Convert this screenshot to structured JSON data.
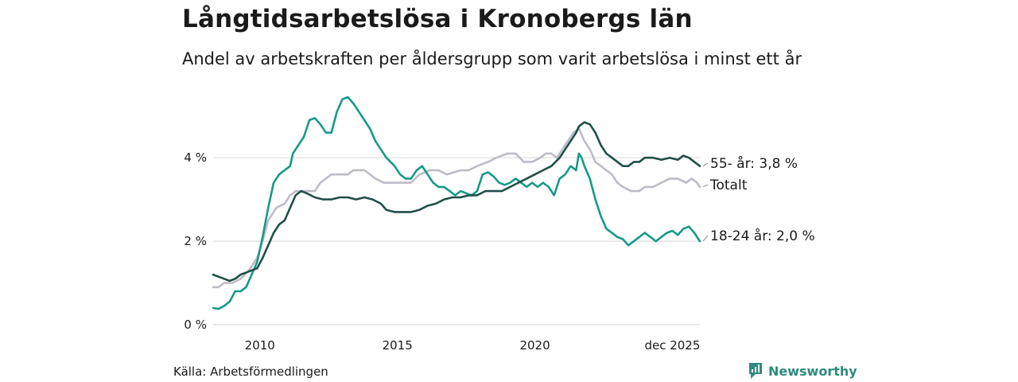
{
  "colors": {
    "youth": "#179a86",
    "older": "#224e48",
    "total": "#bdbcc6",
    "grid": "#dedede",
    "brand": "#2e8b7e"
  },
  "brand": {
    "name": "Newsworthy",
    "icon": "newsworthy-logo-icon"
  },
  "source": "Källa: Arbetsförmedlingen",
  "chart_data": {
    "type": "line",
    "title": "Långtidsarbetslösa i Kronobergs län",
    "subtitle": "Andel av arbetskraften per åldersgrupp som varit arbetslösa i minst ett år",
    "xlabel": "",
    "ylabel": "",
    "xlim": [
      2008.3,
      2026.0
    ],
    "ylim": [
      0,
      5.7
    ],
    "grid": true,
    "y_ticks": [
      0,
      2,
      4
    ],
    "y_tick_labels": [
      "0 %",
      "2 %",
      "4 %"
    ],
    "x_ticks": [
      2010,
      2015,
      2020,
      2025.0
    ],
    "x_tick_labels": [
      "2010",
      "2015",
      "2020",
      "dec 2025"
    ],
    "series": [
      {
        "name": "Totalt",
        "label": "Totalt",
        "points": [
          [
            2008.3,
            0.9
          ],
          [
            2008.5,
            0.9
          ],
          [
            2008.7,
            1.0
          ],
          [
            2009.0,
            1.0
          ],
          [
            2009.3,
            1.1
          ],
          [
            2009.6,
            1.3
          ],
          [
            2009.9,
            1.6
          ],
          [
            2010.1,
            2.0
          ],
          [
            2010.3,
            2.5
          ],
          [
            2010.6,
            2.8
          ],
          [
            2010.9,
            2.9
          ],
          [
            2011.1,
            3.1
          ],
          [
            2011.3,
            3.2
          ],
          [
            2011.6,
            3.2
          ],
          [
            2012.0,
            3.2
          ],
          [
            2012.2,
            3.4
          ],
          [
            2012.6,
            3.6
          ],
          [
            2013.2,
            3.6
          ],
          [
            2013.4,
            3.7
          ],
          [
            2013.8,
            3.7
          ],
          [
            2014.2,
            3.5
          ],
          [
            2014.5,
            3.4
          ],
          [
            2015.0,
            3.4
          ],
          [
            2015.5,
            3.4
          ],
          [
            2015.8,
            3.6
          ],
          [
            2016.2,
            3.7
          ],
          [
            2016.5,
            3.7
          ],
          [
            2016.8,
            3.6
          ],
          [
            2017.3,
            3.7
          ],
          [
            2017.6,
            3.7
          ],
          [
            2017.9,
            3.8
          ],
          [
            2018.3,
            3.9
          ],
          [
            2018.6,
            4.0
          ],
          [
            2019.0,
            4.1
          ],
          [
            2019.3,
            4.1
          ],
          [
            2019.6,
            3.9
          ],
          [
            2019.9,
            3.9
          ],
          [
            2020.2,
            4.0
          ],
          [
            2020.4,
            4.1
          ],
          [
            2020.6,
            4.1
          ],
          [
            2020.8,
            4.0
          ],
          [
            2021.0,
            4.2
          ],
          [
            2021.2,
            4.4
          ],
          [
            2021.4,
            4.6
          ],
          [
            2021.6,
            4.7
          ],
          [
            2021.8,
            4.4
          ],
          [
            2022.0,
            4.2
          ],
          [
            2022.2,
            3.9
          ],
          [
            2022.4,
            3.8
          ],
          [
            2022.6,
            3.7
          ],
          [
            2022.8,
            3.6
          ],
          [
            2023.0,
            3.4
          ],
          [
            2023.2,
            3.3
          ],
          [
            2023.5,
            3.2
          ],
          [
            2023.8,
            3.2
          ],
          [
            2024.0,
            3.3
          ],
          [
            2024.3,
            3.3
          ],
          [
            2024.6,
            3.4
          ],
          [
            2024.9,
            3.5
          ],
          [
            2025.2,
            3.5
          ],
          [
            2025.5,
            3.4
          ],
          [
            2025.7,
            3.5
          ],
          [
            2025.9,
            3.4
          ],
          [
            2026.0,
            3.3
          ]
        ]
      },
      {
        "name": "18-24 år",
        "label": "18-24 år: 2,0 %",
        "points": [
          [
            2008.3,
            0.4
          ],
          [
            2008.5,
            0.38
          ],
          [
            2008.7,
            0.45
          ],
          [
            2008.9,
            0.55
          ],
          [
            2009.1,
            0.8
          ],
          [
            2009.3,
            0.8
          ],
          [
            2009.5,
            0.9
          ],
          [
            2009.7,
            1.2
          ],
          [
            2009.9,
            1.5
          ],
          [
            2010.1,
            2.1
          ],
          [
            2010.3,
            2.8
          ],
          [
            2010.5,
            3.4
          ],
          [
            2010.7,
            3.6
          ],
          [
            2010.9,
            3.7
          ],
          [
            2011.1,
            3.8
          ],
          [
            2011.2,
            4.1
          ],
          [
            2011.4,
            4.3
          ],
          [
            2011.6,
            4.5
          ],
          [
            2011.8,
            4.9
          ],
          [
            2012.0,
            4.95
          ],
          [
            2012.2,
            4.8
          ],
          [
            2012.4,
            4.6
          ],
          [
            2012.6,
            4.6
          ],
          [
            2012.8,
            5.1
          ],
          [
            2013.0,
            5.4
          ],
          [
            2013.2,
            5.45
          ],
          [
            2013.4,
            5.3
          ],
          [
            2013.6,
            5.1
          ],
          [
            2013.8,
            4.9
          ],
          [
            2014.0,
            4.7
          ],
          [
            2014.2,
            4.4
          ],
          [
            2014.4,
            4.2
          ],
          [
            2014.6,
            4.0
          ],
          [
            2014.9,
            3.8
          ],
          [
            2015.1,
            3.6
          ],
          [
            2015.3,
            3.5
          ],
          [
            2015.5,
            3.5
          ],
          [
            2015.7,
            3.7
          ],
          [
            2015.9,
            3.8
          ],
          [
            2016.1,
            3.6
          ],
          [
            2016.3,
            3.4
          ],
          [
            2016.5,
            3.3
          ],
          [
            2016.7,
            3.3
          ],
          [
            2016.9,
            3.2
          ],
          [
            2017.1,
            3.1
          ],
          [
            2017.3,
            3.2
          ],
          [
            2017.5,
            3.15
          ],
          [
            2017.7,
            3.1
          ],
          [
            2017.9,
            3.2
          ],
          [
            2018.1,
            3.6
          ],
          [
            2018.3,
            3.65
          ],
          [
            2018.5,
            3.55
          ],
          [
            2018.7,
            3.4
          ],
          [
            2018.9,
            3.35
          ],
          [
            2019.1,
            3.4
          ],
          [
            2019.3,
            3.5
          ],
          [
            2019.5,
            3.4
          ],
          [
            2019.7,
            3.3
          ],
          [
            2019.9,
            3.4
          ],
          [
            2020.1,
            3.3
          ],
          [
            2020.3,
            3.4
          ],
          [
            2020.5,
            3.3
          ],
          [
            2020.7,
            3.1
          ],
          [
            2020.9,
            3.5
          ],
          [
            2021.1,
            3.6
          ],
          [
            2021.3,
            3.8
          ],
          [
            2021.5,
            3.7
          ],
          [
            2021.6,
            4.1
          ],
          [
            2021.7,
            4.0
          ],
          [
            2021.8,
            3.8
          ],
          [
            2022.0,
            3.5
          ],
          [
            2022.2,
            3.0
          ],
          [
            2022.4,
            2.6
          ],
          [
            2022.6,
            2.3
          ],
          [
            2022.8,
            2.2
          ],
          [
            2023.0,
            2.1
          ],
          [
            2023.2,
            2.05
          ],
          [
            2023.4,
            1.9
          ],
          [
            2023.6,
            2.0
          ],
          [
            2023.8,
            2.1
          ],
          [
            2024.0,
            2.2
          ],
          [
            2024.2,
            2.1
          ],
          [
            2024.4,
            2.0
          ],
          [
            2024.6,
            2.1
          ],
          [
            2024.8,
            2.2
          ],
          [
            2025.0,
            2.25
          ],
          [
            2025.2,
            2.15
          ],
          [
            2025.4,
            2.3
          ],
          [
            2025.6,
            2.35
          ],
          [
            2025.8,
            2.2
          ],
          [
            2026.0,
            2.0
          ]
        ]
      },
      {
        "name": "55- år",
        "label": "55- år: 3,8 %",
        "points": [
          [
            2008.3,
            1.2
          ],
          [
            2008.5,
            1.15
          ],
          [
            2008.7,
            1.1
          ],
          [
            2008.9,
            1.05
          ],
          [
            2009.1,
            1.1
          ],
          [
            2009.3,
            1.2
          ],
          [
            2009.5,
            1.25
          ],
          [
            2009.7,
            1.3
          ],
          [
            2009.9,
            1.35
          ],
          [
            2010.1,
            1.6
          ],
          [
            2010.3,
            1.9
          ],
          [
            2010.5,
            2.2
          ],
          [
            2010.7,
            2.4
          ],
          [
            2010.9,
            2.5
          ],
          [
            2011.1,
            2.8
          ],
          [
            2011.3,
            3.1
          ],
          [
            2011.5,
            3.2
          ],
          [
            2011.7,
            3.15
          ],
          [
            2012.0,
            3.05
          ],
          [
            2012.3,
            3.0
          ],
          [
            2012.6,
            3.0
          ],
          [
            2012.9,
            3.05
          ],
          [
            2013.2,
            3.05
          ],
          [
            2013.5,
            3.0
          ],
          [
            2013.8,
            3.05
          ],
          [
            2014.1,
            3.0
          ],
          [
            2014.4,
            2.9
          ],
          [
            2014.6,
            2.75
          ],
          [
            2014.9,
            2.7
          ],
          [
            2015.2,
            2.7
          ],
          [
            2015.5,
            2.7
          ],
          [
            2015.8,
            2.75
          ],
          [
            2016.1,
            2.85
          ],
          [
            2016.4,
            2.9
          ],
          [
            2016.7,
            3.0
          ],
          [
            2017.0,
            3.05
          ],
          [
            2017.3,
            3.05
          ],
          [
            2017.6,
            3.1
          ],
          [
            2017.9,
            3.1
          ],
          [
            2018.2,
            3.2
          ],
          [
            2018.5,
            3.2
          ],
          [
            2018.8,
            3.2
          ],
          [
            2019.1,
            3.3
          ],
          [
            2019.4,
            3.4
          ],
          [
            2019.7,
            3.5
          ],
          [
            2020.0,
            3.6
          ],
          [
            2020.3,
            3.7
          ],
          [
            2020.6,
            3.8
          ],
          [
            2020.9,
            4.0
          ],
          [
            2021.1,
            4.2
          ],
          [
            2021.3,
            4.4
          ],
          [
            2021.5,
            4.6
          ],
          [
            2021.6,
            4.75
          ],
          [
            2021.8,
            4.85
          ],
          [
            2022.0,
            4.8
          ],
          [
            2022.2,
            4.6
          ],
          [
            2022.4,
            4.3
          ],
          [
            2022.6,
            4.1
          ],
          [
            2022.8,
            4.0
          ],
          [
            2023.0,
            3.9
          ],
          [
            2023.2,
            3.8
          ],
          [
            2023.4,
            3.8
          ],
          [
            2023.6,
            3.9
          ],
          [
            2023.8,
            3.9
          ],
          [
            2024.0,
            4.0
          ],
          [
            2024.3,
            4.0
          ],
          [
            2024.6,
            3.95
          ],
          [
            2024.9,
            4.0
          ],
          [
            2025.2,
            3.95
          ],
          [
            2025.4,
            4.05
          ],
          [
            2025.6,
            4.0
          ],
          [
            2025.8,
            3.9
          ],
          [
            2026.0,
            3.8
          ]
        ]
      }
    ]
  }
}
